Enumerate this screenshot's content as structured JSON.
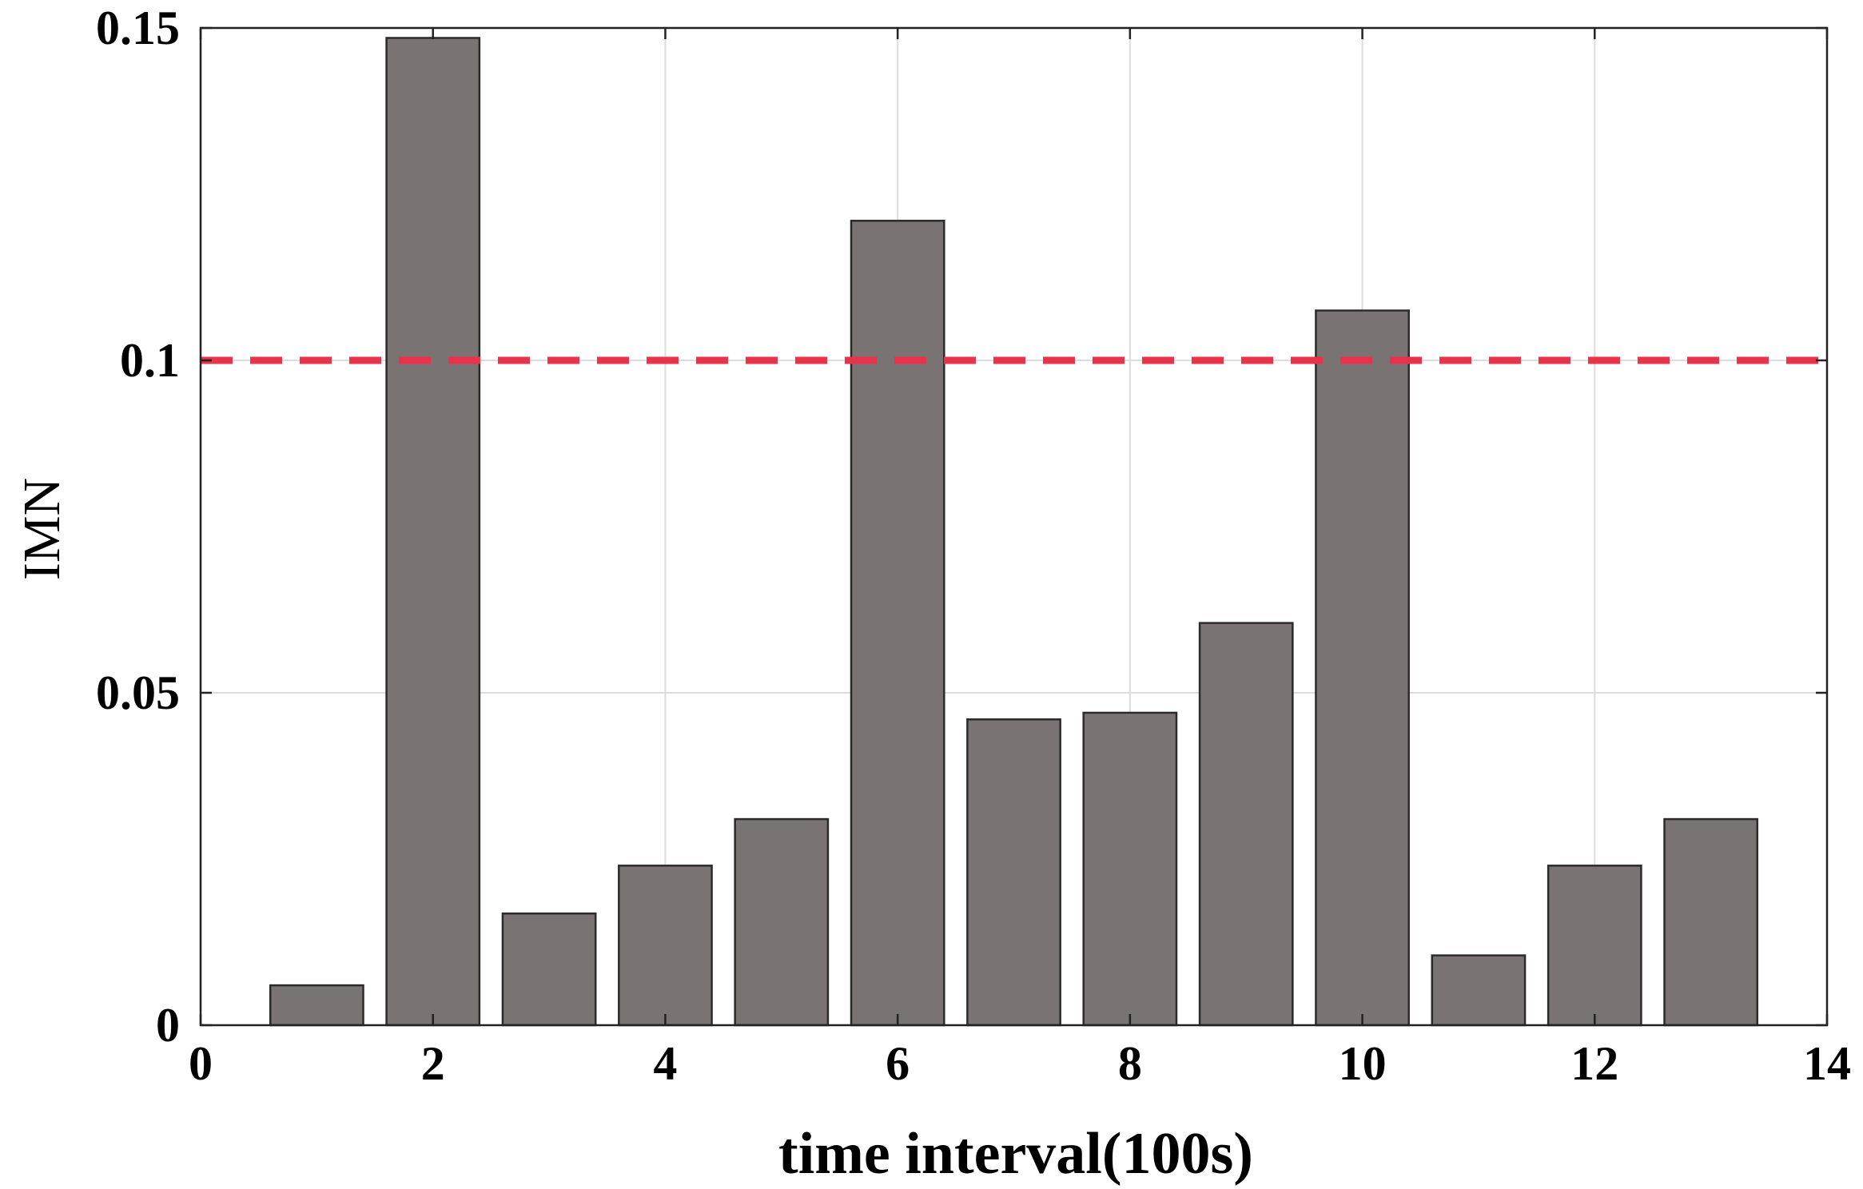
{
  "chart_data": {
    "type": "bar",
    "title": "",
    "xlabel": "time interval(100s)",
    "ylabel": "IMN",
    "xlim": [
      0,
      14
    ],
    "ylim": [
      0,
      0.15
    ],
    "x_ticks": [
      0,
      2,
      4,
      6,
      8,
      10,
      12,
      14
    ],
    "x_tick_labels": [
      "0",
      "2",
      "4",
      "6",
      "8",
      "10",
      "12",
      "14"
    ],
    "y_ticks": [
      0,
      0.05,
      0.1,
      0.15
    ],
    "y_tick_labels": [
      "0",
      "0.05",
      "0.1",
      "0.15"
    ],
    "grid": true,
    "bar_width": 0.8,
    "x": [
      1,
      2,
      3,
      4,
      5,
      6,
      7,
      8,
      9,
      10,
      11,
      12,
      13
    ],
    "values": [
      0.006,
      0.1485,
      0.0168,
      0.024,
      0.031,
      0.121,
      0.046,
      0.047,
      0.0605,
      0.1075,
      0.0105,
      0.024,
      0.031
    ],
    "threshold": 0.1,
    "colors": {
      "bar_fill": "#797373",
      "bar_edge": "#2b2b2b",
      "threshold_line": "#e8334a",
      "grid": "#dcdcdc",
      "axis": "#222222"
    }
  }
}
